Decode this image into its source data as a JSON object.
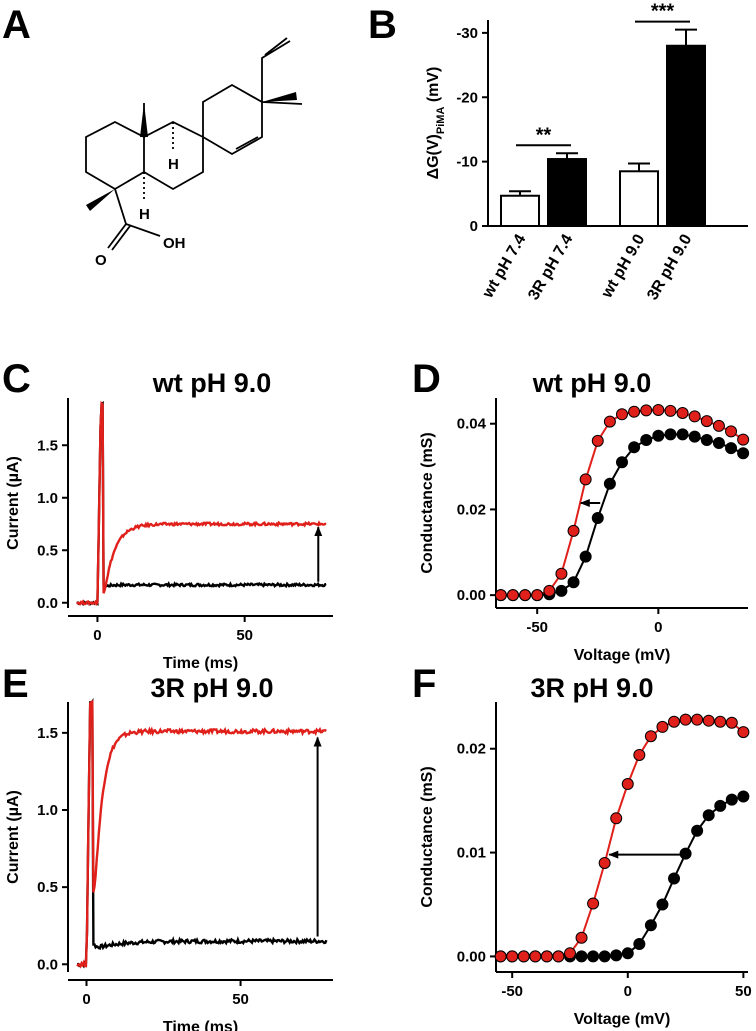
{
  "panels": {
    "A": {
      "letter": "A",
      "structure_labels": {
        "h1": "H",
        "h2": "H",
        "o": "O",
        "oh": "OH"
      }
    },
    "B": {
      "letter": "B"
    },
    "C": {
      "letter": "C",
      "title": "wt pH 9.0"
    },
    "D": {
      "letter": "D",
      "title": "wt pH 9.0"
    },
    "E": {
      "letter": "E",
      "title": "3R pH 9.0"
    },
    "F": {
      "letter": "F",
      "title": "3R pH 9.0"
    }
  },
  "colors": {
    "control": "#000000",
    "pima": "#e0201b",
    "open_bar": "#ffffff"
  },
  "chart_data": [
    {
      "id": "B",
      "type": "bar",
      "ylabel_main": "ΔG(V)",
      "ylabel_sub": "PiMA",
      "ylabel_unit": " (mV)",
      "ylim": [
        0,
        -32
      ],
      "yticks": [
        0,
        -10,
        -20,
        -30
      ],
      "ytick_labels": [
        "0",
        "-10",
        "-20",
        "-30"
      ],
      "categories": [
        "wt pH 7.4",
        "3R pH 7.4",
        "wt pH 9.0",
        "3R pH 9.0"
      ],
      "values": [
        -4.7,
        -10.4,
        -8.5,
        -28
      ],
      "errors": [
        0.7,
        0.9,
        1.2,
        2.5
      ],
      "fills": [
        "open",
        "filled",
        "open",
        "filled"
      ],
      "significance": [
        {
          "pair": [
            0,
            1
          ],
          "label": "**"
        },
        {
          "pair": [
            2,
            3
          ],
          "label": "***"
        }
      ]
    },
    {
      "id": "C",
      "type": "line",
      "xlabel": "Time (ms)",
      "ylabel": "Current (µA)",
      "xlim": [
        -10,
        80
      ],
      "ylim": [
        -0.05,
        1.95
      ],
      "xticks": [
        0,
        50
      ],
      "xtick_labels": [
        "0",
        "50"
      ],
      "yticks": [
        0,
        0.5,
        1,
        1.5
      ],
      "ytick_labels": [
        "0.0",
        "0.5",
        "1.0",
        "1.5"
      ],
      "series": [
        {
          "color": "black",
          "baseline": 0.0,
          "steady": 0.17,
          "tau": 1.2,
          "start": 2
        },
        {
          "color": "red",
          "baseline": 0.0,
          "steady": 0.75,
          "tau": 3.5,
          "start": 2
        }
      ],
      "arrow": {
        "x": 75,
        "from": 0.2,
        "to": 0.72
      }
    },
    {
      "id": "D",
      "type": "scatter",
      "xlabel": "Voltage (mV)",
      "ylabel": "Conductance (mS)",
      "xlim": [
        -67,
        37
      ],
      "ylim": [
        -0.003,
        0.046
      ],
      "xticks": [
        -50,
        0
      ],
      "xtick_labels": [
        "-50",
        "0"
      ],
      "yticks": [
        0,
        0.02,
        0.04
      ],
      "ytick_labels": [
        "0.00",
        "0.02",
        "0.04"
      ],
      "x": [
        -65,
        -60,
        -55,
        -50,
        -45,
        -40,
        -35,
        -30,
        -25,
        -20,
        -15,
        -10,
        -5,
        0,
        5,
        10,
        15,
        20,
        25,
        30,
        35
      ],
      "series": [
        {
          "color": "black",
          "values": [
            0.0,
            0.0,
            0.0,
            0.0,
            0.0002,
            0.001,
            0.003,
            0.009,
            0.018,
            0.026,
            0.031,
            0.0345,
            0.0362,
            0.0372,
            0.0375,
            0.0375,
            0.037,
            0.0362,
            0.0355,
            0.0343,
            0.0331
          ]
        },
        {
          "color": "red",
          "values": [
            0.0,
            0.0,
            0.0,
            0.0,
            0.001,
            0.005,
            0.015,
            0.027,
            0.036,
            0.0405,
            0.0422,
            0.0428,
            0.0431,
            0.0432,
            0.043,
            0.0425,
            0.0417,
            0.0406,
            0.0395,
            0.0382,
            0.0363
          ]
        }
      ],
      "arrow": {
        "y": 0.0215,
        "from": -24,
        "to": -32
      }
    },
    {
      "id": "E",
      "type": "line",
      "xlabel": "Time (ms)",
      "ylabel": "Current (µA)",
      "xlim": [
        -6,
        80
      ],
      "ylim": [
        -0.05,
        1.7
      ],
      "xticks": [
        0,
        50
      ],
      "xtick_labels": [
        "0",
        "50"
      ],
      "yticks": [
        0,
        0.5,
        1,
        1.5
      ],
      "ytick_labels": [
        "0.0",
        "0.5",
        "1.0",
        "1.5"
      ],
      "series": [
        {
          "color": "black",
          "baseline": 0.0,
          "steady": 0.15,
          "tau": 8,
          "start": 2
        },
        {
          "color": "red",
          "baseline": 0.0,
          "steady": 1.51,
          "tau": 2.5,
          "start": 2
        }
      ],
      "arrow": {
        "x": 75,
        "from": 0.18,
        "to": 1.47
      }
    },
    {
      "id": "F",
      "type": "scatter",
      "xlabel": "Voltage (mV)",
      "ylabel": "Conductance (mS)",
      "xlim": [
        -57,
        52
      ],
      "ylim": [
        -0.0015,
        0.0245
      ],
      "xticks": [
        -50,
        0,
        50
      ],
      "xtick_labels": [
        "-50",
        "0",
        "50"
      ],
      "yticks": [
        0,
        0.01,
        0.02
      ],
      "ytick_labels": [
        "0.00",
        "0.01",
        "0.02"
      ],
      "x": [
        -55,
        -50,
        -45,
        -40,
        -35,
        -30,
        -25,
        -20,
        -15,
        -10,
        -5,
        0,
        5,
        10,
        15,
        20,
        25,
        30,
        35,
        40,
        45,
        50
      ],
      "series": [
        {
          "color": "black",
          "values": [
            0.0,
            0.0,
            0.0,
            0.0,
            0.0,
            0.0,
            0.0,
            0.0,
            0.0,
            0.0,
            0.0001,
            0.0003,
            0.0012,
            0.003,
            0.005,
            0.0075,
            0.0099,
            0.0121,
            0.0136,
            0.0145,
            0.0151,
            0.0154
          ]
        },
        {
          "color": "red",
          "values": [
            0.0,
            0.0,
            0.0,
            0.0,
            0.0,
            0.0,
            0.0003,
            0.0018,
            0.0051,
            0.009,
            0.0133,
            0.0166,
            0.0194,
            0.0212,
            0.0221,
            0.0226,
            0.0228,
            0.0228,
            0.0227,
            0.0226,
            0.0225,
            0.0216
          ]
        }
      ],
      "arrow": {
        "y": 0.0098,
        "from": 24,
        "to": -8
      }
    }
  ]
}
